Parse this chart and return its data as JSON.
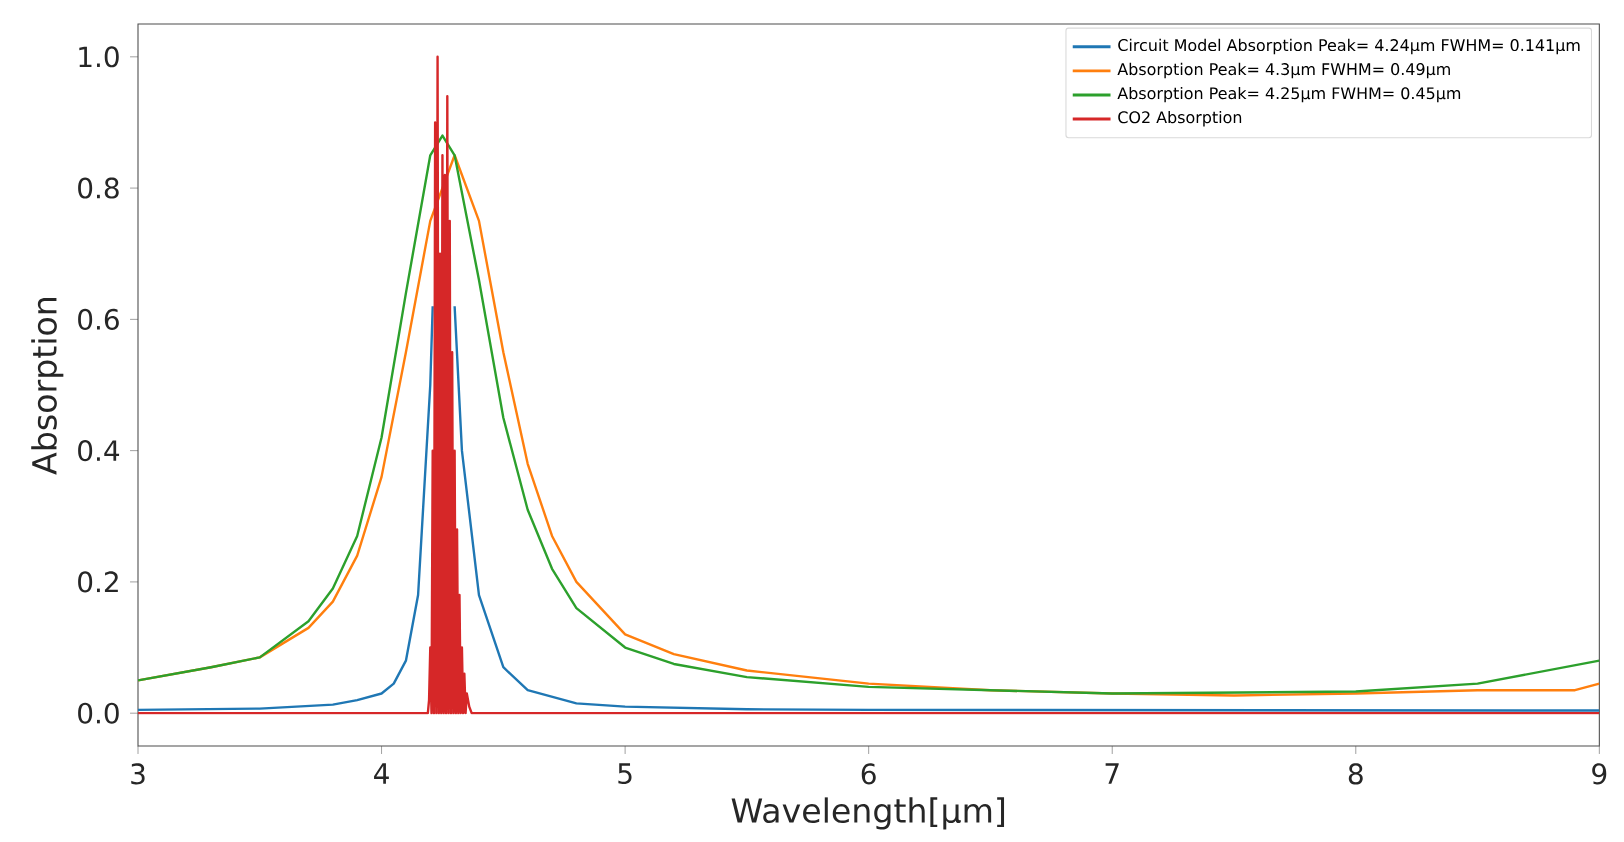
{
  "chart_data": {
    "type": "line",
    "xlabel": "Wavelength[µm]",
    "ylabel": "Absorption",
    "xlim": [
      3,
      9
    ],
    "xticks": [
      3,
      4,
      5,
      6,
      7,
      8,
      9
    ],
    "ylim": [
      -0.05,
      1.05
    ],
    "yticks": [
      {
        "value": 0,
        "label": "0.0"
      },
      {
        "value": 0.2,
        "label": "0.2"
      },
      {
        "value": 0.4,
        "label": "0.4"
      },
      {
        "value": 0.6,
        "label": "0.6"
      },
      {
        "value": 0.8,
        "label": "0.8"
      },
      {
        "value": 1.0,
        "label": "1.0"
      }
    ],
    "grid": false,
    "legend": "top right",
    "marker": "none",
    "line_style": "solid",
    "series": [
      {
        "name": "Circuit Model Absorption Peak= 4.24µm FWHM= 0.141µm",
        "color": "#1f77b4",
        "x": [
          3,
          3.5,
          3.8,
          3.9,
          4.0,
          4.05,
          4.1,
          4.15,
          4.2,
          4.21,
          4.24,
          4.3,
          4.33,
          4.4,
          4.5,
          4.6,
          4.8,
          5.0,
          5.5,
          6,
          9
        ],
        "values": [
          0.005,
          0.007,
          0.013,
          0.02,
          0.03,
          0.045,
          0.08,
          0.18,
          0.5,
          0.62,
          null,
          0.62,
          0.4,
          0.18,
          0.07,
          0.035,
          0.015,
          0.01,
          0.006,
          0.005,
          0.004
        ]
      },
      {
        "name": "Absorption Peak= 4.3µm FWHM= 0.49µm",
        "color": "#ff7f0e",
        "x": [
          3,
          3.3,
          3.5,
          3.7,
          3.8,
          3.9,
          4.0,
          4.1,
          4.2,
          4.3,
          4.4,
          4.5,
          4.6,
          4.7,
          4.8,
          5.0,
          5.2,
          5.5,
          6,
          6.5,
          7,
          7.5,
          8,
          8.5,
          8.9,
          9
        ],
        "values": [
          0.05,
          0.07,
          0.085,
          0.13,
          0.17,
          0.24,
          0.36,
          0.55,
          0.75,
          0.85,
          0.75,
          0.55,
          0.38,
          0.27,
          0.2,
          0.12,
          0.09,
          0.065,
          0.045,
          0.035,
          0.03,
          0.027,
          0.03,
          0.035,
          0.035,
          0.045
        ]
      },
      {
        "name": "Absorption Peak= 4.25µm FWHM= 0.45µm",
        "color": "#2ca02c",
        "x": [
          3,
          3.3,
          3.5,
          3.7,
          3.8,
          3.9,
          4.0,
          4.1,
          4.2,
          4.25,
          4.3,
          4.4,
          4.5,
          4.6,
          4.7,
          4.8,
          5.0,
          5.2,
          5.5,
          6,
          7,
          8,
          8.5,
          9
        ],
        "values": [
          0.05,
          0.07,
          0.085,
          0.14,
          0.19,
          0.27,
          0.42,
          0.64,
          0.85,
          0.88,
          0.85,
          0.66,
          0.45,
          0.31,
          0.22,
          0.16,
          0.1,
          0.075,
          0.055,
          0.04,
          0.03,
          0.033,
          0.045,
          0.08
        ]
      },
      {
        "name": "CO2 Absorption",
        "color": "#d62728",
        "x": [
          3,
          4.19,
          4.195,
          4.2,
          4.205,
          4.21,
          4.215,
          4.22,
          4.225,
          4.23,
          4.235,
          4.24,
          4.245,
          4.25,
          4.255,
          4.26,
          4.265,
          4.27,
          4.275,
          4.28,
          4.285,
          4.29,
          4.295,
          4.3,
          4.305,
          4.31,
          4.315,
          4.32,
          4.325,
          4.33,
          4.335,
          4.34,
          4.345,
          4.35,
          4.36,
          4.37,
          9
        ],
        "values": [
          0,
          0,
          0.02,
          0.1,
          0,
          0.4,
          0,
          0.9,
          0,
          1.0,
          0,
          0.7,
          0,
          0.85,
          0,
          0.82,
          0,
          0.94,
          0,
          0.75,
          0,
          0.55,
          0,
          0.4,
          0,
          0.28,
          0,
          0.18,
          0,
          0.1,
          0,
          0.06,
          0,
          0.03,
          0.01,
          0,
          0
        ]
      }
    ]
  }
}
